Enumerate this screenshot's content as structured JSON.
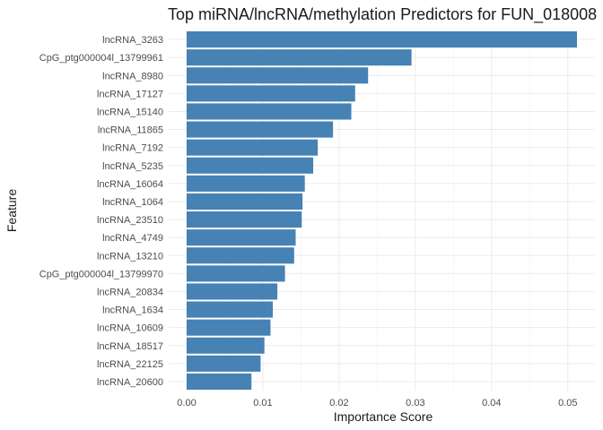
{
  "colors": {
    "bar": "#4682B4",
    "grid_major": "#ebebeb",
    "grid_minor": "#f3f3f3",
    "background": "#ffffff"
  },
  "chart_data": {
    "type": "bar",
    "orientation": "horizontal",
    "title": "Top miRNA/lncRNA/methylation Predictors for FUN_018008",
    "xlabel": "Importance Score",
    "ylabel": "Feature",
    "xlim": [
      0,
      0.0512
    ],
    "x_ticks": [
      0.0,
      0.01,
      0.02,
      0.03,
      0.04,
      0.05
    ],
    "x_tick_labels": [
      "0.00",
      "0.01",
      "0.02",
      "0.03",
      "0.04",
      "0.05"
    ],
    "grid": true,
    "categories": [
      "lncRNA_3263",
      "CpG_ptg000004l_13799961",
      "lncRNA_8980",
      "lncRNA_17127",
      "lncRNA_15140",
      "lncRNA_11865",
      "lncRNA_7192",
      "lncRNA_5235",
      "lncRNA_16064",
      "lncRNA_1064",
      "lncRNA_23510",
      "lncRNA_4749",
      "lncRNA_13210",
      "CpG_ptg000004l_13799970",
      "lncRNA_20834",
      "lncRNA_1634",
      "lncRNA_10609",
      "lncRNA_18517",
      "lncRNA_22125",
      "lncRNA_20600"
    ],
    "values": [
      0.0512,
      0.0295,
      0.0238,
      0.0221,
      0.0216,
      0.0192,
      0.0172,
      0.0166,
      0.0155,
      0.0152,
      0.0151,
      0.0143,
      0.0141,
      0.0129,
      0.0119,
      0.0113,
      0.011,
      0.0102,
      0.0097,
      0.0085
    ]
  }
}
